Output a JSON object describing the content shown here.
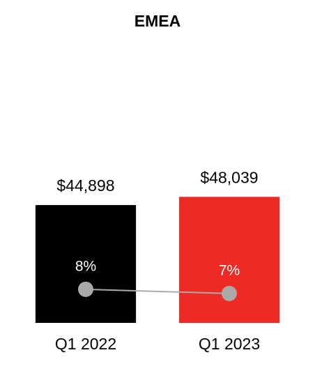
{
  "chart_data": {
    "type": "bar",
    "title": "EMEA",
    "categories": [
      "Q1 2022",
      "Q1 2023"
    ],
    "values": [
      44898,
      48039
    ],
    "value_labels": [
      "$44,898",
      "$48,039"
    ],
    "colors": [
      "#000000",
      "#ee2a24"
    ],
    "ylim": [
      0,
      80000
    ],
    "series": [
      {
        "type": "line",
        "axis": "y2",
        "color": "#aaaaaa",
        "values": [
          8,
          7
        ],
        "value_labels": [
          "8%",
          "7%"
        ]
      }
    ],
    "y2lim": [
      0,
      50
    ]
  }
}
